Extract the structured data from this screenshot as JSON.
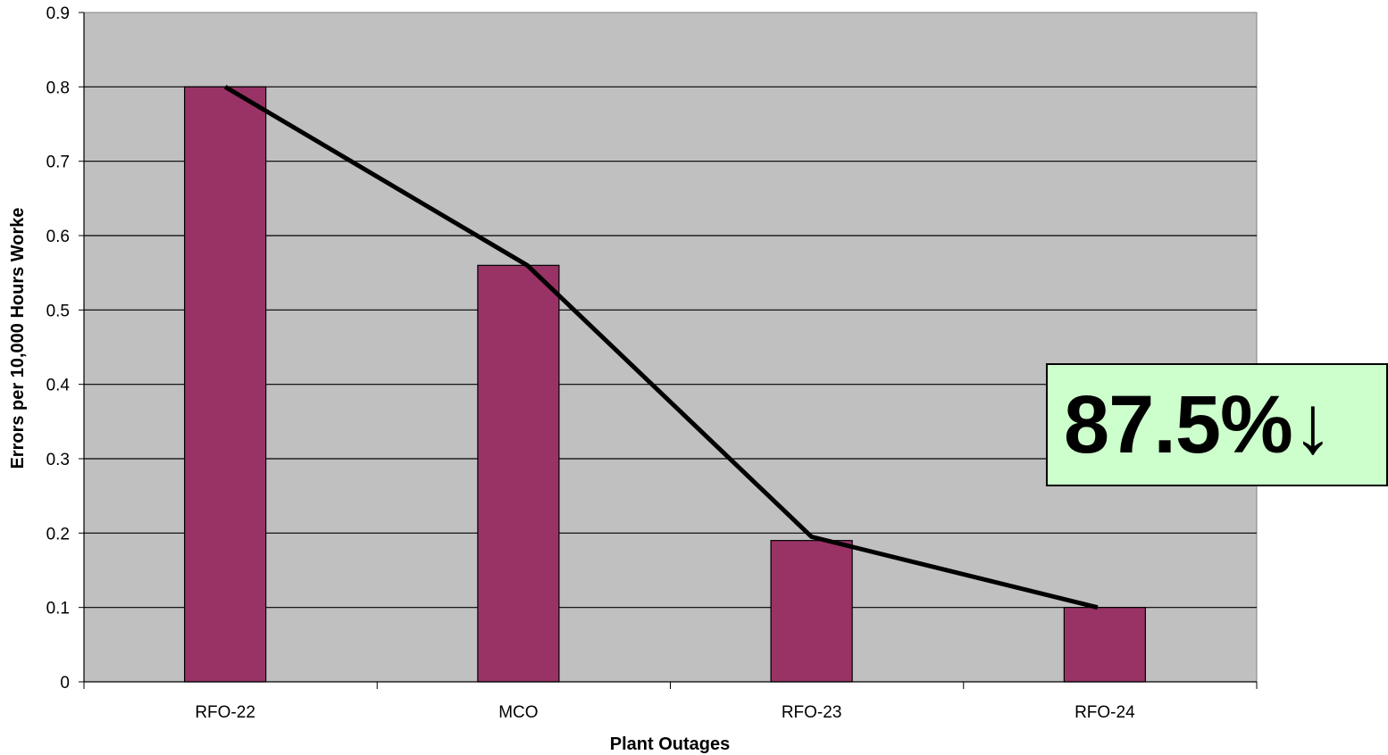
{
  "chart_data": {
    "type": "bar",
    "title": "",
    "xlabel": "Plant Outages",
    "ylabel": "Errors per 10,000 Hours Worke",
    "categories": [
      "RFO-22",
      "MCO",
      "RFO-23",
      "RFO-24"
    ],
    "series": [
      {
        "values": [
          0.8,
          0.56,
          0.19,
          0.1
        ]
      }
    ],
    "trend_line": [
      0.8,
      0.56,
      0.195,
      0.1
    ],
    "ylim": [
      0,
      0.9
    ],
    "yticks": [
      "0",
      "0.1",
      "0.2",
      "0.3",
      "0.4",
      "0.5",
      "0.6",
      "0.7",
      "0.8",
      "0.9"
    ],
    "grid": true,
    "legend": "none",
    "colors": {
      "bar": "#993366",
      "plot_bg": "#c0c0c0",
      "trend": "#000000"
    }
  },
  "annotation": {
    "text": "87.5%↓",
    "background": "#ccffcc"
  }
}
